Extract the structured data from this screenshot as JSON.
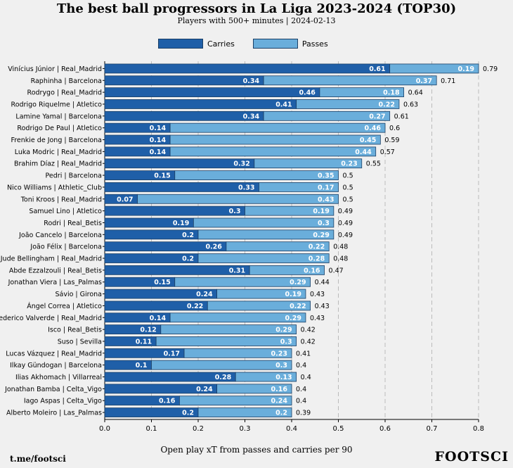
{
  "title": "The best ball progressors in La Liga 2023-2024 (TOP30)",
  "subtitle": "Players with 500+ minutes | 2024-02-13",
  "footer_left": "t.me/footsci",
  "footer_right": "FOOTSCI",
  "colors": {
    "carries": "#1f5fa8",
    "passes": "#6aaedb",
    "background": "#f0f0f0",
    "grid": "#bbbbbb"
  },
  "chart_data": {
    "type": "bar",
    "orientation": "horizontal",
    "stacked": true,
    "title": "The best ball progressors in La Liga 2023-2024 (TOP30)",
    "subtitle": "Players with 500+ minutes | 2024-02-13",
    "xlabel": "Open play xT from passes and carries per 90",
    "ylabel": "",
    "xlim": [
      0,
      0.8
    ],
    "xticks": [
      "0.0",
      "0.1",
      "0.2",
      "0.3",
      "0.4",
      "0.5",
      "0.6",
      "0.7",
      "0.8"
    ],
    "grid": "vertical dashed",
    "legend": {
      "position": "top-center",
      "entries": [
        "Carries",
        "Passes"
      ]
    },
    "categories": [
      "Vinícius Júnior | Real_Madrid",
      "Raphinha | Barcelona",
      "Rodrygo | Real_Madrid",
      "Rodrigo Riquelme | Atletico",
      "Lamine Yamal | Barcelona",
      "Rodrigo De Paul | Atletico",
      "Frenkie de Jong | Barcelona",
      "Luka Modric | Real_Madrid",
      "Brahim Díaz | Real_Madrid",
      "Pedri | Barcelona",
      "Nico Williams | Athletic_Club",
      "Toni Kroos | Real_Madrid",
      "Samuel Lino | Atletico",
      "Rodri | Real_Betis",
      "João Cancelo | Barcelona",
      "João Félix | Barcelona",
      "Jude Bellingham | Real_Madrid",
      "Abde Ezzalzouli | Real_Betis",
      "Jonathan Viera | Las_Palmas",
      "Sávio | Girona",
      "Ángel Correa | Atletico",
      "Federico Valverde | Real_Madrid",
      "Isco | Real_Betis",
      "Suso | Sevilla",
      "Lucas Vázquez | Real_Madrid",
      "Ilkay Gündogan | Barcelona",
      "Ilias Akhomach | Villarreal",
      "Jonathan Bamba | Celta_Vigo",
      "Iago Aspas | Celta_Vigo",
      "Alberto Moleiro | Las_Palmas"
    ],
    "series": [
      {
        "name": "Carries",
        "values": [
          0.61,
          0.34,
          0.46,
          0.41,
          0.34,
          0.14,
          0.14,
          0.14,
          0.32,
          0.15,
          0.33,
          0.07,
          0.3,
          0.19,
          0.2,
          0.26,
          0.2,
          0.31,
          0.15,
          0.24,
          0.22,
          0.14,
          0.12,
          0.11,
          0.17,
          0.1,
          0.28,
          0.24,
          0.16,
          0.2
        ],
        "labels": [
          "0.61",
          "0.34",
          "0.46",
          "0.41",
          "0.34",
          "0.14",
          "0.14",
          "0.14",
          "0.32",
          "0.15",
          "0.33",
          "0.07",
          "0.3",
          "0.19",
          "0.2",
          "0.26",
          "0.2",
          "0.31",
          "0.15",
          "0.24",
          "0.22",
          "0.14",
          "0.12",
          "0.11",
          "0.17",
          "0.1",
          "0.28",
          "0.24",
          "0.16",
          "0.2"
        ]
      },
      {
        "name": "Passes",
        "values": [
          0.19,
          0.37,
          0.18,
          0.22,
          0.27,
          0.46,
          0.45,
          0.44,
          0.23,
          0.35,
          0.17,
          0.43,
          0.19,
          0.3,
          0.29,
          0.22,
          0.28,
          0.16,
          0.29,
          0.19,
          0.22,
          0.29,
          0.29,
          0.3,
          0.23,
          0.3,
          0.13,
          0.16,
          0.24,
          0.2
        ],
        "labels": [
          "0.19",
          "0.37",
          "0.18",
          "0.22",
          "0.27",
          "0.46",
          "0.45",
          "0.44",
          "0.23",
          "0.35",
          "0.17",
          "0.43",
          "0.19",
          "0.3",
          "0.29",
          "0.22",
          "0.28",
          "0.16",
          "0.29",
          "0.19",
          "0.22",
          "0.29",
          "0.29",
          "0.3",
          "0.23",
          "0.3",
          "0.13",
          "0.16",
          "0.24",
          "0.2"
        ]
      }
    ],
    "totals": [
      "0.79",
      "0.71",
      "0.64",
      "0.63",
      "0.61",
      "0.6",
      "0.59",
      "0.57",
      "0.55",
      "0.5",
      "0.5",
      "0.5",
      "0.49",
      "0.49",
      "0.49",
      "0.48",
      "0.48",
      "0.47",
      "0.44",
      "0.43",
      "0.43",
      "0.43",
      "0.42",
      "0.42",
      "0.41",
      "0.4",
      "0.4",
      "0.4",
      "0.4",
      "0.39"
    ]
  }
}
